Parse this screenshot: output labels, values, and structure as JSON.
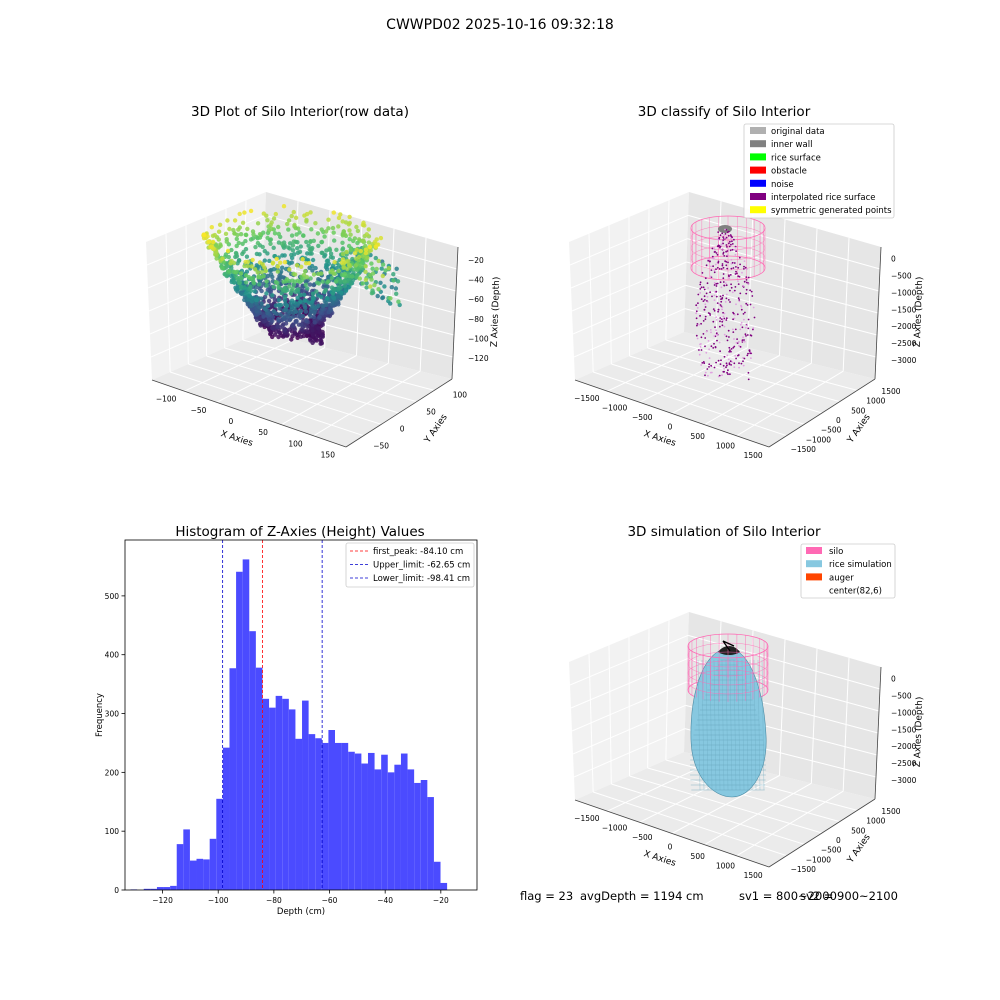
{
  "figure": {
    "suptitle": "CWWPD02 2025-10-16 09:32:18",
    "status_text": {
      "flag": "flag = 23",
      "avg_depth": "avgDepth = 1194 cm",
      "sv1": "sv1 = 800~2000",
      "sv2": "sv2 = 900~2100"
    }
  },
  "colors": {
    "histogram_bar": "#4b4bff",
    "first_peak_line": "#ff0000",
    "limit_lines": "#0000cc",
    "silo_wire": "#ff69b4",
    "rice_simulation": "#87c8e0",
    "auger": "#ff4500",
    "interpolated": "#800080",
    "inner_wall": "#808080",
    "original_data": "#b0b0b0"
  },
  "chart_data": [
    {
      "type": "scatter3d",
      "title": "3D Plot of Silo Interior(row data)",
      "xlabel": "X Axies",
      "ylabel": "Y Axies",
      "zlabel": "Z Axies (Depth)",
      "x_ticks": [
        "−100",
        "−50",
        "0",
        "50",
        "100",
        "150"
      ],
      "y_ticks": [
        "−50",
        "0",
        "50",
        "100"
      ],
      "z_ticks": [
        "−20",
        "−40",
        "−60",
        "−80",
        "−100",
        "−120"
      ],
      "xlim": [
        -125,
        150
      ],
      "ylim": [
        -75,
        125
      ],
      "zlim": [
        -135,
        -10
      ],
      "colormap": "viridis"
    },
    {
      "type": "scatter3d",
      "title": "3D classify of Silo Interior",
      "xlabel": "X Axies",
      "ylabel": "Y Axies",
      "zlabel": "Z Axies (Depth)",
      "x_ticks": [
        "−1500",
        "−1000",
        "−500",
        "0",
        "500",
        "1000",
        "1500"
      ],
      "y_ticks": [
        "−1500",
        "−1000",
        "−500",
        "0",
        "500",
        "1000",
        "1500"
      ],
      "z_ticks": [
        "0",
        "−500",
        "−1000",
        "−1500",
        "−2000",
        "−2500",
        "−3000"
      ],
      "legend": [
        "original data",
        "inner wall",
        "rice surface",
        "obstacle",
        "noise",
        "interpolated rice surface",
        "symmetric generated points"
      ],
      "legend_colors": [
        "#b0b0b0",
        "#808080",
        "#00ff00",
        "#ff0000",
        "#0000ff",
        "#800080",
        "#ffff00"
      ],
      "legend_position": "top-right"
    },
    {
      "type": "bar",
      "title": "Histogram of Z-Axies (Height) Values",
      "xlabel": "Depth (cm)",
      "ylabel": "Frequency",
      "xlim": [
        -133.5,
        -7
      ],
      "ylim": [
        0,
        595
      ],
      "x_ticks": [
        -120,
        -100,
        -80,
        -60,
        -40,
        -20
      ],
      "x_tick_labels": [
        "−120",
        "−100",
        "−80",
        "−60",
        "−40",
        "−20"
      ],
      "y_ticks": [
        0,
        100,
        200,
        300,
        400,
        500
      ],
      "bin_start": -131.5,
      "bin_width": 2.37,
      "values": [
        1,
        0,
        2,
        2,
        5,
        5,
        7,
        78,
        103,
        50,
        53,
        52,
        87,
        155,
        242,
        377,
        541,
        562,
        440,
        378,
        325,
        310,
        330,
        325,
        307,
        257,
        322,
        265,
        258,
        250,
        272,
        250,
        250,
        235,
        232,
        215,
        233,
        205,
        230,
        200,
        213,
        232,
        205,
        182,
        187,
        158,
        48,
        12
      ],
      "lines": [
        {
          "name": "first_peak: -84.10 cm",
          "x": -84.1,
          "color": "#ff0000"
        },
        {
          "name": "Upper_limit: -62.65 cm",
          "x": -62.65,
          "color": "#0000cc"
        },
        {
          "name": "Lower_limit: -98.41 cm",
          "x": -98.41,
          "color": "#0000cc"
        }
      ],
      "legend_position": "top-right"
    },
    {
      "type": "surface3d",
      "title": "3D simulation of Silo Interior",
      "xlabel": "X Axies",
      "ylabel": "Y Axies",
      "zlabel": "Z Axies (Depth)",
      "x_ticks": [
        "−1500",
        "−1000",
        "−500",
        "0",
        "500",
        "1000",
        "1500"
      ],
      "y_ticks": [
        "−1500",
        "−1000",
        "−500",
        "0",
        "500",
        "1000",
        "1500"
      ],
      "z_ticks": [
        "0",
        "−500",
        "−1000",
        "−1500",
        "−2000",
        "−2500",
        "−3000"
      ],
      "legend": [
        "silo",
        "rice simulation",
        "auger",
        "center(82,6)"
      ],
      "legend_colors": [
        "#ff69b4",
        "#87c8e0",
        "#ff4500",
        null
      ],
      "legend_position": "top-right"
    }
  ]
}
